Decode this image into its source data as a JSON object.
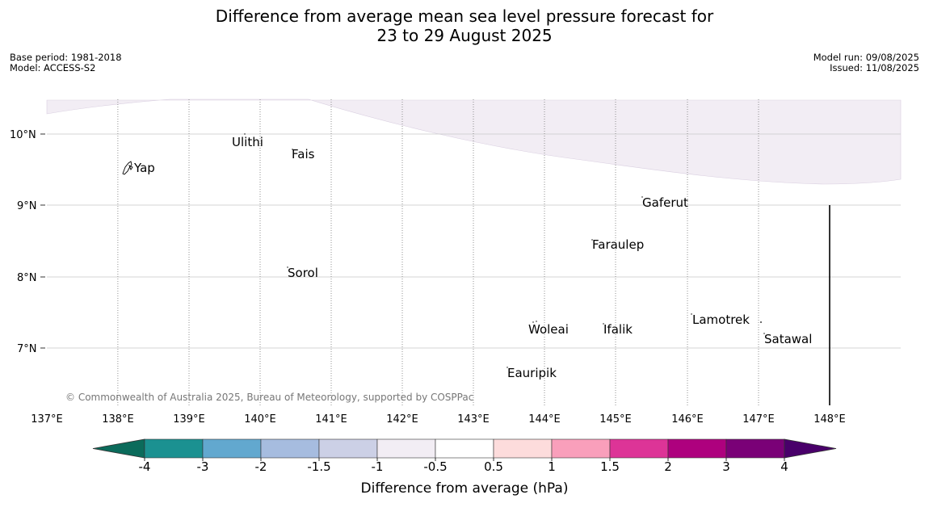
{
  "title": {
    "line1": "Difference from average mean sea level pressure forecast for",
    "line2": "23 to 29 August 2025"
  },
  "meta_left": {
    "base_period": "Base period: 1981-2018",
    "model": "Model: ACCESS-S2"
  },
  "meta_right": {
    "model_run": "Model run: 09/08/2025",
    "issued": "Issued: 11/08/2025"
  },
  "map": {
    "lon_labels": [
      "137°E",
      "138°E",
      "139°E",
      "140°E",
      "141°E",
      "142°E",
      "143°E",
      "144°E",
      "145°E",
      "146°E",
      "147°E",
      "148°E"
    ],
    "lat_labels": [
      "10°N",
      "9°N",
      "8°N",
      "7°N"
    ],
    "places": [
      {
        "name": "Yap"
      },
      {
        "name": "Ulithi"
      },
      {
        "name": "Fais"
      },
      {
        "name": "Gaferut"
      },
      {
        "name": "Faraulep"
      },
      {
        "name": "Sorol"
      },
      {
        "name": "Woleai"
      },
      {
        "name": "Ifalik"
      },
      {
        "name": "Lamotrek"
      },
      {
        "name": "Satawal"
      },
      {
        "name": "Eauripik"
      }
    ],
    "shaded_anomaly_color": "#f2edf4",
    "copyright": "© Commonwealth of Australia 2025, Bureau of Meteorology, supported by COSPPac"
  },
  "colorbar": {
    "label": "Difference from average (hPa)",
    "ticks": [
      "-4",
      "-3",
      "-2",
      "-1.5",
      "-1",
      "-0.5",
      "0.5",
      "1",
      "1.5",
      "2",
      "3",
      "4"
    ],
    "colors": [
      "#0b6b5b",
      "#1b9191",
      "#62a8cf",
      "#a6bcdf",
      "#ccd0e6",
      "#f2edf4",
      "#ffffff",
      "#fddcdc",
      "#f99fbb",
      "#dd3497",
      "#ae017e",
      "#7a0177",
      "#49006a"
    ]
  }
}
